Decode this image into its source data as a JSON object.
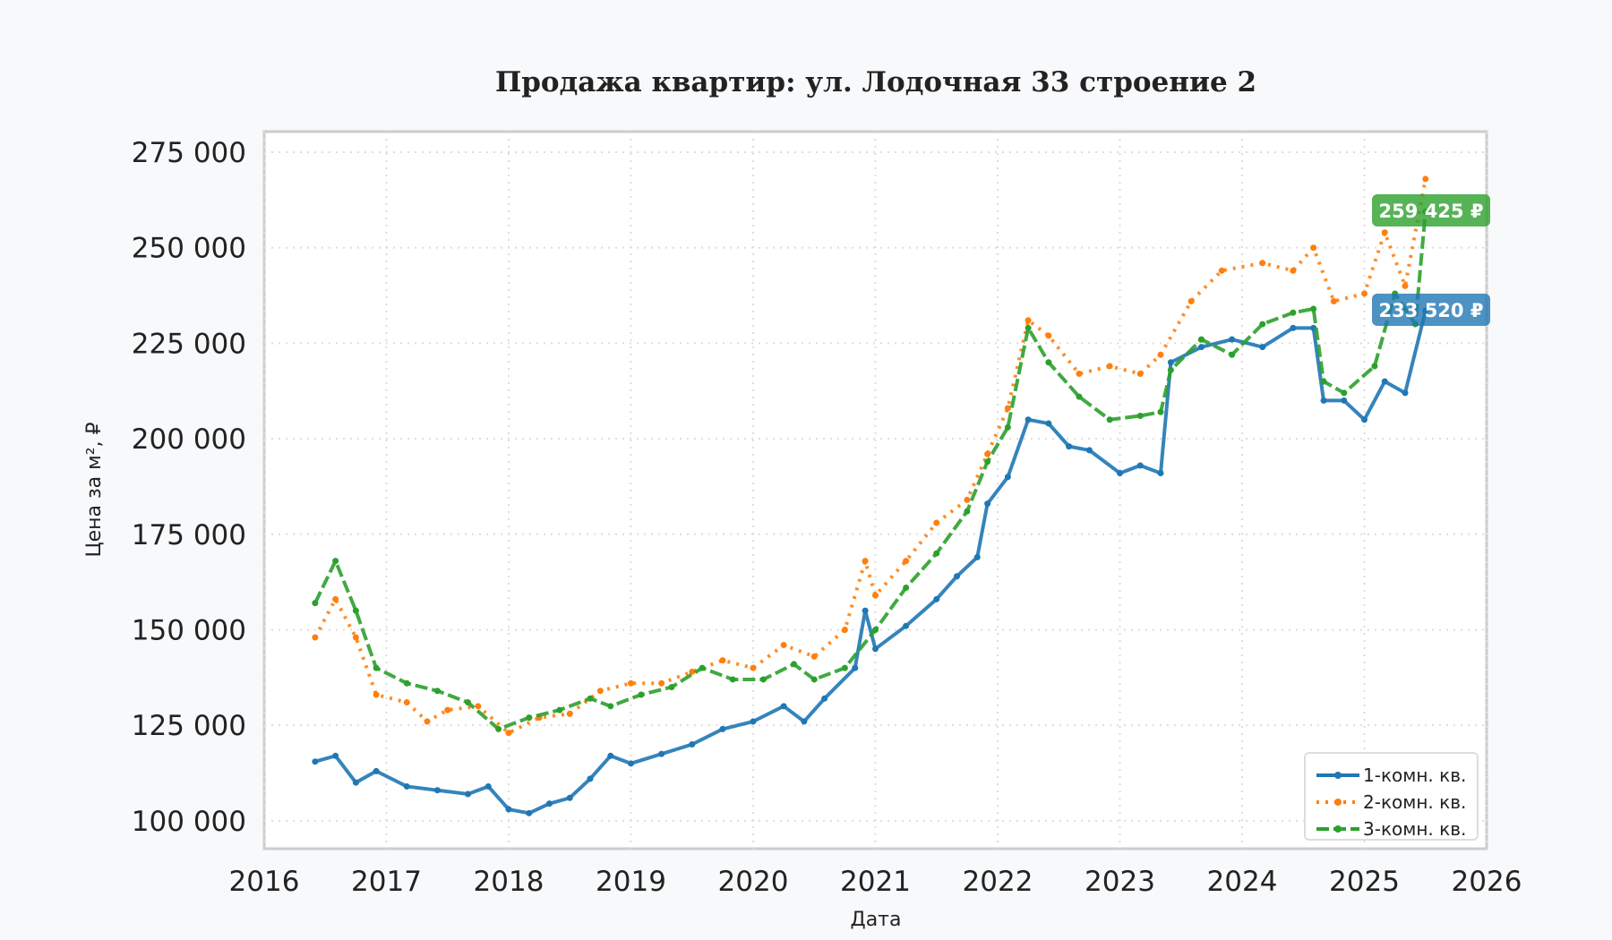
{
  "chart_data": {
    "type": "line",
    "title": "Продажа квартир: ул. Лодочная 33 строение 2",
    "xlabel": "Дата",
    "ylabel": "Цена за м², ₽",
    "xlim": [
      "2016-01",
      "2026-01"
    ],
    "ylim": [
      92700,
      280400
    ],
    "grid": true,
    "legend_placement": "bottom-right",
    "x_ticks": [
      "2016",
      "2017",
      "2018",
      "2019",
      "2020",
      "2021",
      "2022",
      "2023",
      "2024",
      "2025",
      "2026"
    ],
    "y_ticks": [
      100000,
      125000,
      150000,
      175000,
      200000,
      225000,
      250000,
      275000
    ],
    "y_tick_labels": [
      "100 000",
      "125 000",
      "150 000",
      "175 000",
      "200 000",
      "225 000",
      "250 000",
      "275 000"
    ],
    "series": [
      {
        "name": "1-комн. кв.",
        "color": "#1f77b4",
        "style": "solid",
        "marker": "plus",
        "end_label": "233 520 ₽",
        "points": [
          [
            "2016-06",
            115500
          ],
          [
            "2016-08",
            117000
          ],
          [
            "2016-10",
            110000
          ],
          [
            "2016-12",
            113000
          ],
          [
            "2017-03",
            109000
          ],
          [
            "2017-06",
            108000
          ],
          [
            "2017-09",
            107000
          ],
          [
            "2017-11",
            109000
          ],
          [
            "2018-01",
            103000
          ],
          [
            "2018-03",
            102000
          ],
          [
            "2018-05",
            104500
          ],
          [
            "2018-07",
            106000
          ],
          [
            "2018-09",
            111000
          ],
          [
            "2018-11",
            117000
          ],
          [
            "2019-01",
            115000
          ],
          [
            "2019-04",
            117500
          ],
          [
            "2019-07",
            120000
          ],
          [
            "2019-10",
            124000
          ],
          [
            "2020-01",
            126000
          ],
          [
            "2020-04",
            130000
          ],
          [
            "2020-06",
            126000
          ],
          [
            "2020-08",
            132000
          ],
          [
            "2020-11",
            140000
          ],
          [
            "2020-12",
            155000
          ],
          [
            "2021-01",
            145000
          ],
          [
            "2021-04",
            151000
          ],
          [
            "2021-07",
            158000
          ],
          [
            "2021-09",
            164000
          ],
          [
            "2021-11",
            169000
          ],
          [
            "2021-12",
            183000
          ],
          [
            "2022-02",
            190000
          ],
          [
            "2022-04",
            205000
          ],
          [
            "2022-06",
            204000
          ],
          [
            "2022-08",
            198000
          ],
          [
            "2022-10",
            197000
          ],
          [
            "2023-01",
            191000
          ],
          [
            "2023-03",
            193000
          ],
          [
            "2023-05",
            191000
          ],
          [
            "2023-06",
            220000
          ],
          [
            "2023-09",
            224000
          ],
          [
            "2023-12",
            226000
          ],
          [
            "2024-03",
            224000
          ],
          [
            "2024-06",
            229000
          ],
          [
            "2024-08",
            229000
          ],
          [
            "2024-09",
            210000
          ],
          [
            "2024-11",
            210000
          ],
          [
            "2025-01",
            205000
          ],
          [
            "2025-03",
            215000
          ],
          [
            "2025-05",
            212000
          ],
          [
            "2025-07",
            233520
          ]
        ]
      },
      {
        "name": "2-комн. кв.",
        "color": "#ff7f0e",
        "style": "dotted",
        "marker": "triangle-left",
        "points": [
          [
            "2016-06",
            148000
          ],
          [
            "2016-08",
            158000
          ],
          [
            "2016-10",
            148000
          ],
          [
            "2016-12",
            133000
          ],
          [
            "2017-03",
            131000
          ],
          [
            "2017-05",
            126000
          ],
          [
            "2017-07",
            129000
          ],
          [
            "2017-10",
            130000
          ],
          [
            "2018-01",
            123000
          ],
          [
            "2018-04",
            127000
          ],
          [
            "2018-07",
            128000
          ],
          [
            "2018-10",
            134000
          ],
          [
            "2019-01",
            136000
          ],
          [
            "2019-04",
            136000
          ],
          [
            "2019-07",
            139000
          ],
          [
            "2019-10",
            142000
          ],
          [
            "2020-01",
            140000
          ],
          [
            "2020-04",
            146000
          ],
          [
            "2020-07",
            143000
          ],
          [
            "2020-10",
            150000
          ],
          [
            "2020-12",
            168000
          ],
          [
            "2021-01",
            159000
          ],
          [
            "2021-04",
            168000
          ],
          [
            "2021-07",
            178000
          ],
          [
            "2021-10",
            184000
          ],
          [
            "2021-12",
            196000
          ],
          [
            "2022-02",
            208000
          ],
          [
            "2022-04",
            231000
          ],
          [
            "2022-06",
            227000
          ],
          [
            "2022-09",
            217000
          ],
          [
            "2022-12",
            219000
          ],
          [
            "2023-03",
            217000
          ],
          [
            "2023-05",
            222000
          ],
          [
            "2023-08",
            236000
          ],
          [
            "2023-11",
            244000
          ],
          [
            "2024-03",
            246000
          ],
          [
            "2024-06",
            244000
          ],
          [
            "2024-08",
            250000
          ],
          [
            "2024-10",
            236000
          ],
          [
            "2025-01",
            238000
          ],
          [
            "2025-03",
            254000
          ],
          [
            "2025-05",
            240000
          ],
          [
            "2025-07",
            268000
          ]
        ]
      },
      {
        "name": "3-комн. кв.",
        "color": "#2ca02c",
        "style": "dashed",
        "marker": "pentagon",
        "end_label": "259 425 ₽",
        "points": [
          [
            "2016-06",
            157000
          ],
          [
            "2016-08",
            168000
          ],
          [
            "2016-10",
            155000
          ],
          [
            "2016-12",
            140000
          ],
          [
            "2017-03",
            136000
          ],
          [
            "2017-06",
            134000
          ],
          [
            "2017-09",
            131000
          ],
          [
            "2017-12",
            124000
          ],
          [
            "2018-03",
            127000
          ],
          [
            "2018-06",
            129000
          ],
          [
            "2018-09",
            132000
          ],
          [
            "2018-11",
            130000
          ],
          [
            "2019-02",
            133000
          ],
          [
            "2019-05",
            135000
          ],
          [
            "2019-08",
            140000
          ],
          [
            "2019-11",
            137000
          ],
          [
            "2020-02",
            137000
          ],
          [
            "2020-05",
            141000
          ],
          [
            "2020-07",
            137000
          ],
          [
            "2020-10",
            140000
          ],
          [
            "2021-01",
            150000
          ],
          [
            "2021-04",
            161000
          ],
          [
            "2021-07",
            170000
          ],
          [
            "2021-10",
            181000
          ],
          [
            "2021-12",
            194000
          ],
          [
            "2022-02",
            203000
          ],
          [
            "2022-04",
            229000
          ],
          [
            "2022-06",
            220000
          ],
          [
            "2022-09",
            211000
          ],
          [
            "2022-12",
            205000
          ],
          [
            "2023-03",
            206000
          ],
          [
            "2023-05",
            207000
          ],
          [
            "2023-06",
            218000
          ],
          [
            "2023-09",
            226000
          ],
          [
            "2023-12",
            222000
          ],
          [
            "2024-03",
            230000
          ],
          [
            "2024-06",
            233000
          ],
          [
            "2024-08",
            234000
          ],
          [
            "2024-09",
            215000
          ],
          [
            "2024-11",
            212000
          ],
          [
            "2025-02",
            219000
          ],
          [
            "2025-04",
            238000
          ],
          [
            "2025-06",
            230000
          ],
          [
            "2025-07",
            259425
          ]
        ]
      }
    ]
  }
}
